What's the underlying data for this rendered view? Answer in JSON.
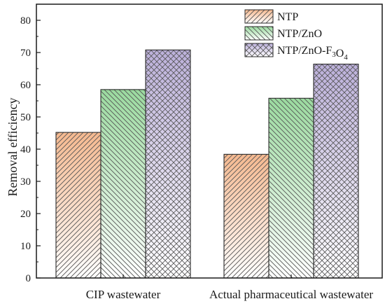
{
  "chart_data": {
    "type": "bar",
    "ylabel": "Removal efficiency",
    "ylim": [
      0,
      85
    ],
    "yticks": [
      0,
      10,
      20,
      30,
      40,
      50,
      60,
      70,
      80
    ],
    "categories": [
      "CIP wastewater",
      "Actual pharmaceutical wastewater"
    ],
    "legend_position": "top-right",
    "series": [
      {
        "name": "NTP",
        "values": [
          45.2,
          38.4
        ],
        "color": "#f4b183",
        "pattern": "diagonal-hatch"
      },
      {
        "name": "NTP/ZnO",
        "values": [
          58.5,
          55.8
        ],
        "color": "#8fd694",
        "pattern": "back-diagonal-hatch"
      },
      {
        "name": "NTP/ZnO-F3O4",
        "values": [
          70.8,
          66.4
        ],
        "color": "#b4a7d6",
        "pattern": "cross-hatch"
      }
    ]
  }
}
